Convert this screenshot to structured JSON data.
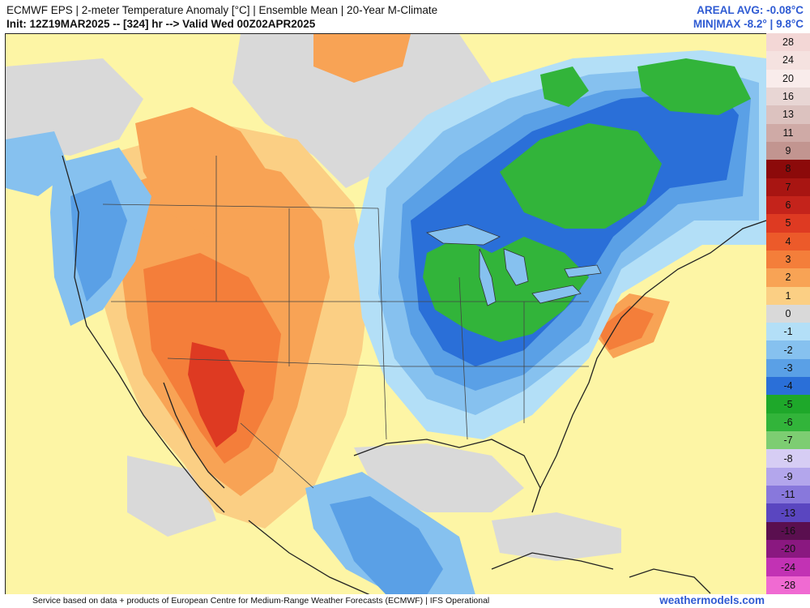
{
  "header": {
    "title": "ECMWF EPS | 2-meter Temperature Anomaly [°C] | Ensemble Mean | 20-Year M-Climate",
    "subtitle": "Init: 12Z19MAR2025 -- [324] hr --> Valid Wed 00Z02APR2025",
    "areal_avg": "AREAL AVG: -0.08°C",
    "min_max": "MIN|MAX -8.2° | 9.8°C"
  },
  "colorbar": {
    "levels": [
      {
        "label": "28",
        "color": "#f3d7d6"
      },
      {
        "label": "24",
        "color": "#f5e2e0"
      },
      {
        "label": "20",
        "color": "#f9eceb"
      },
      {
        "label": "16",
        "color": "#e8d6d4"
      },
      {
        "label": "13",
        "color": "#dcc2bf"
      },
      {
        "label": "11",
        "color": "#cfaaa6"
      },
      {
        "label": "9",
        "color": "#c29590"
      },
      {
        "label": "8",
        "color": "#8c0a0a"
      },
      {
        "label": "7",
        "color": "#a81512"
      },
      {
        "label": "6",
        "color": "#c4231b"
      },
      {
        "label": "5",
        "color": "#de3a22"
      },
      {
        "label": "4",
        "color": "#ec5a2a"
      },
      {
        "label": "3",
        "color": "#f47e3a"
      },
      {
        "label": "2",
        "color": "#f8a355"
      },
      {
        "label": "1",
        "color": "#fbcf84"
      },
      {
        "label": "0",
        "color": "#d9d9d9"
      },
      {
        "label": "-1",
        "color": "#b3dff7"
      },
      {
        "label": "-2",
        "color": "#86c1ef"
      },
      {
        "label": "-3",
        "color": "#5aa0e6"
      },
      {
        "label": "-4",
        "color": "#2a6fd8"
      },
      {
        "label": "-5",
        "color": "#1ea82a"
      },
      {
        "label": "-6",
        "color": "#32b43a"
      },
      {
        "label": "-7",
        "color": "#7dcd72"
      },
      {
        "label": "-8",
        "color": "#d6cdf4"
      },
      {
        "label": "-9",
        "color": "#b3a6ec"
      },
      {
        "label": "-11",
        "color": "#8878dc"
      },
      {
        "label": "-13",
        "color": "#5a46c0"
      },
      {
        "label": "-16",
        "color": "#5a0f4f"
      },
      {
        "label": "-20",
        "color": "#8a1880"
      },
      {
        "label": "-24",
        "color": "#c232b4"
      },
      {
        "label": "-28",
        "color": "#f06ad2"
      }
    ]
  },
  "map": {
    "colors": {
      "base": "#fdf5a5",
      "near_zero": "#d9d9d9",
      "warm1": "#fbcf84",
      "warm2": "#f8a355",
      "warm3": "#f47e3a",
      "warm4": "#de3a22",
      "cool1": "#b3dff7",
      "cool2": "#86c1ef",
      "cool3": "#5aa0e6",
      "cool4": "#2a6fd8",
      "green": "#32b43a",
      "border": "#222222"
    }
  },
  "footer": {
    "credit": "Service based on data + products of European Centre for Medium-Range Weather Forecasts (ECMWF) | IFS Operational",
    "brand": "weathermodels.com"
  }
}
